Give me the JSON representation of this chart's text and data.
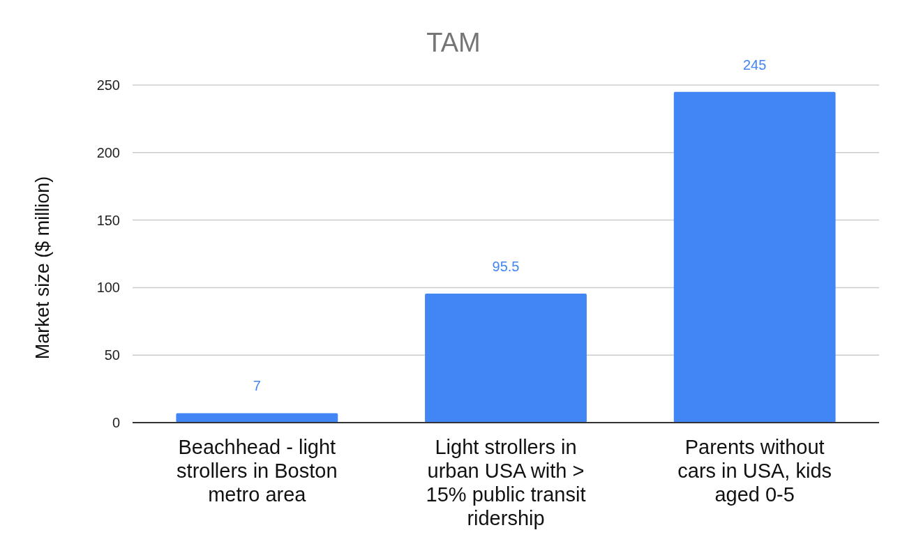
{
  "chart_data": {
    "type": "bar",
    "title": "TAM",
    "ylabel": "Market size ($ million)",
    "categories": [
      "Beachhead - light strollers in Boston metro area",
      "Light strollers in urban USA with > 15% public transit ridership",
      "Parents without cars in USA, kids aged 0-5"
    ],
    "values": [
      7,
      95.5,
      245
    ],
    "color": "#4285f4",
    "ylim": [
      0,
      250
    ],
    "yticks": [
      0,
      50,
      100,
      150,
      200,
      250
    ],
    "grid": "y",
    "data_labels": true
  }
}
